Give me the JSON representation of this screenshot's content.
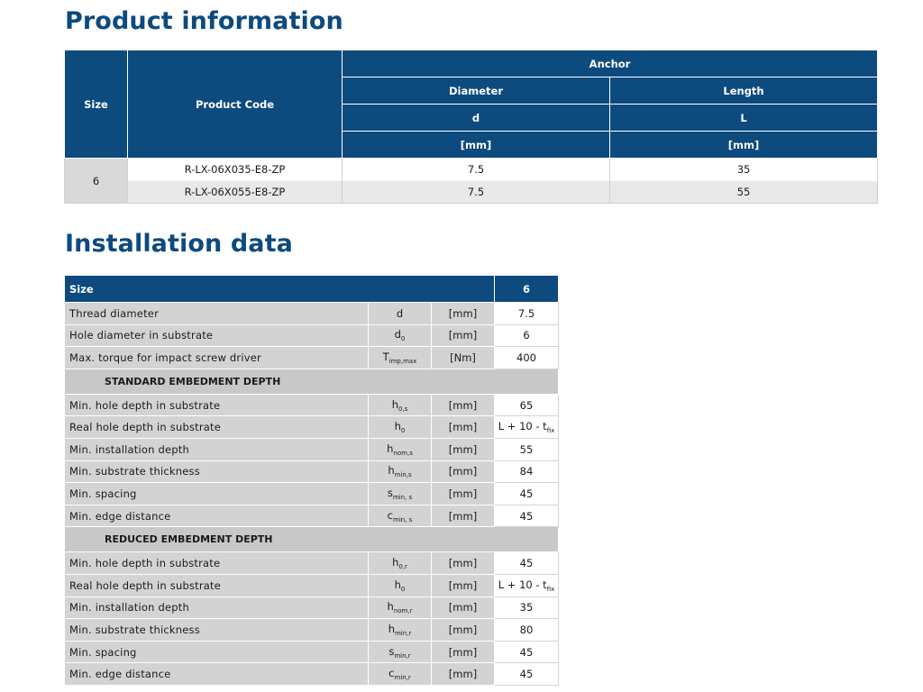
{
  "product_section": {
    "title": "Product information",
    "headers": {
      "size": "Size",
      "product_code": "Product Code",
      "anchor": "Anchor",
      "diameter": "Diameter",
      "length": "Length",
      "diameter_symbol": "d",
      "length_symbol": "L",
      "diameter_unit": "[mm]",
      "length_unit": "[mm]"
    },
    "size": "6",
    "rows": [
      {
        "code": "R-LX-06X035-E8-ZP",
        "diameter": "7.5",
        "length": "35"
      },
      {
        "code": "R-LX-06X055-E8-ZP",
        "diameter": "7.5",
        "length": "55"
      }
    ]
  },
  "installation_section": {
    "title": "Installation data",
    "header": {
      "label": "Size",
      "value": "6"
    },
    "rows": [
      {
        "label": "Thread diameter",
        "sym": "d",
        "sub": "",
        "unit": "[mm]",
        "value": "7.5"
      },
      {
        "label": "Hole diameter  in substrate",
        "sym": "d",
        "sub": "0",
        "unit": "[mm]",
        "value": "6"
      },
      {
        "label": "Max. torque for impact screw driver",
        "sym": "T",
        "sub": "imp,max",
        "unit": "[Nm]",
        "value": "400"
      }
    ],
    "standard": {
      "title": "STANDARD EMBEDMENT DEPTH",
      "rows": [
        {
          "label": "Min. hole depth in substrate",
          "sym": "h",
          "sub": "0,s",
          "unit": "[mm]",
          "value": "65"
        },
        {
          "label": "Real hole depth in substrate",
          "sym": "h",
          "sub": "0",
          "unit": "[mm]",
          "value": "L + 10 - t",
          "value_sub": "fix"
        },
        {
          "label": "Min. installation  depth",
          "sym": "h",
          "sub": "nom,s",
          "unit": "[mm]",
          "value": "55"
        },
        {
          "label": "Min. substrate  thickness",
          "sym": "h",
          "sub": "min,s",
          "unit": "[mm]",
          "value": "84"
        },
        {
          "label": "Min. spacing",
          "sym": "s",
          "sub": "min, s",
          "unit": "[mm]",
          "value": "45"
        },
        {
          "label": "Min. edge distance",
          "sym": "c",
          "sub": "min, s",
          "unit": "[mm]",
          "value": "45"
        }
      ]
    },
    "reduced": {
      "title": "REDUCED EMBEDMENT DEPTH",
      "rows": [
        {
          "label": "Min. hole depth in substrate",
          "sym": "h",
          "sub": "0,r",
          "unit": "[mm]",
          "value": "45"
        },
        {
          "label": "Real hole depth in substrate",
          "sym": "h",
          "sub": "0",
          "unit": "[mm]",
          "value": "L + 10 - t",
          "value_sub": "fix"
        },
        {
          "label": "Min. installation  depth",
          "sym": "h",
          "sub": "nom,r",
          "unit": "[mm]",
          "value": "35"
        },
        {
          "label": "Min. substrate  thickness",
          "sym": "h",
          "sub": "min,r",
          "unit": "[mm]",
          "value": "80"
        },
        {
          "label": "Min. spacing",
          "sym": "s",
          "sub": "min,r",
          "unit": "[mm]",
          "value": "45"
        },
        {
          "label": "Min. edge distance",
          "sym": "c",
          "sub": "min,r",
          "unit": "[mm]",
          "value": "45"
        }
      ]
    }
  }
}
